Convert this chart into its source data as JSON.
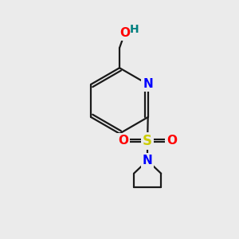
{
  "background_color": "#ebebeb",
  "bond_color": "#1a1a1a",
  "bond_width": 1.6,
  "atom_colors": {
    "N": "#0000ff",
    "O": "#ff0000",
    "S": "#cccc00",
    "H": "#008080",
    "C": "#1a1a1a"
  },
  "font_size_atom": 10,
  "figsize": [
    3.0,
    3.0
  ],
  "dpi": 100
}
